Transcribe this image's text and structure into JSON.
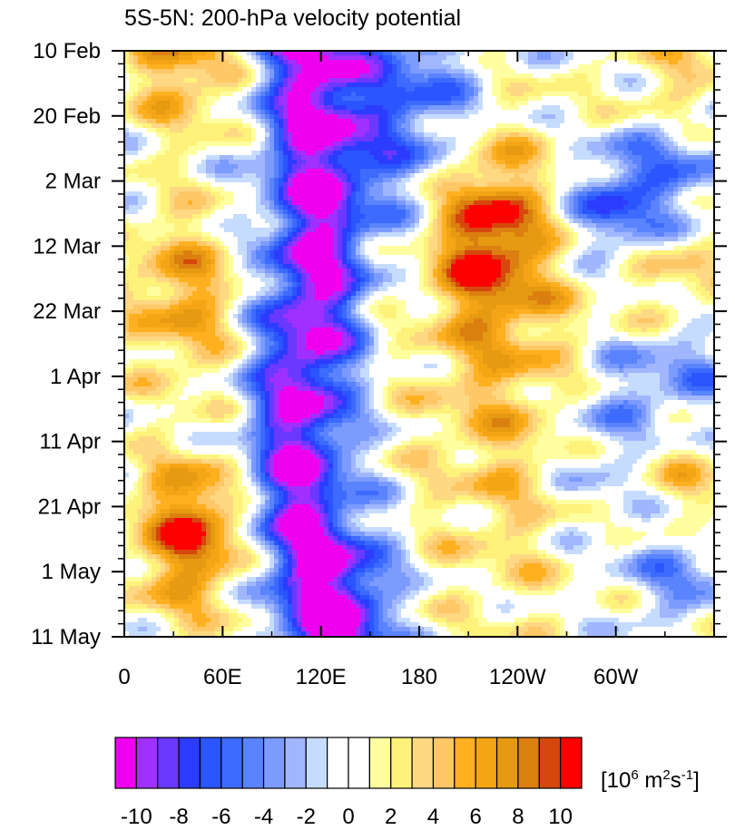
{
  "chart_data": {
    "type": "heatmap",
    "title": "5S-5N: 200-hPa velocity potential",
    "xlabel": "",
    "ylabel": "",
    "x_ticks": [
      "0",
      "60E",
      "120E",
      "180",
      "120W",
      "60W"
    ],
    "x_tick_values": [
      0,
      60,
      120,
      180,
      240,
      300
    ],
    "xlim": [
      0,
      360
    ],
    "y_ticks": [
      "10 Feb",
      "20 Feb",
      "2 Mar",
      "12 Mar",
      "22 Mar",
      "1 Apr",
      "11 Apr",
      "21 Apr",
      "1 May",
      "11 May"
    ],
    "y_tick_values": [
      0,
      10,
      20,
      30,
      40,
      50,
      60,
      70,
      80,
      90
    ],
    "ylim": [
      0,
      90
    ],
    "y_direction": "time increases downward",
    "colorbar": {
      "levels": [
        -11,
        -10,
        -9,
        -8,
        -7,
        -6,
        -5,
        -4,
        -3,
        -2,
        -1,
        0,
        1,
        2,
        3,
        4,
        5,
        6,
        7,
        8,
        9,
        10,
        11
      ],
      "colors": [
        "#ee00ee",
        "#a030ff",
        "#6a38ff",
        "#2c3cff",
        "#2a55ff",
        "#3d6bff",
        "#5a83ff",
        "#7c9bff",
        "#a0b6ff",
        "#c6dcff",
        "#ffffff",
        "#ffffff",
        "#ffffa0",
        "#fff27a",
        "#ffd884",
        "#ffc766",
        "#ffb020",
        "#f4a516",
        "#e59a12",
        "#db7f10",
        "#d5470c",
        "#ff0000"
      ],
      "tick_labels": [
        "-10",
        "-8",
        "-6",
        "-4",
        "-2",
        "0",
        "2",
        "4",
        "6",
        "8",
        "10"
      ],
      "tick_values": [
        -10,
        -8,
        -6,
        -4,
        -2,
        0,
        2,
        4,
        6,
        8,
        10
      ],
      "units": {
        "prefix": "[10",
        "sup1": "6",
        "mid": " m",
        "sup2": "2",
        "mid2": "s",
        "sup3": "-1",
        "suffix": "]"
      }
    },
    "features": [
      {
        "lon_start": 78,
        "lon_end": 150,
        "day_start": 0,
        "day_end": 90,
        "approx_min": -10
      },
      {
        "lon_start": 140,
        "lon_end": 200,
        "day_start": 0,
        "day_end": 20,
        "approx_min": -8
      },
      {
        "lon_start": 200,
        "lon_end": 230,
        "day_start": 25,
        "day_end": 35,
        "approx_max": 10
      },
      {
        "lon_start": 25,
        "lon_end": 70,
        "day_start": 65,
        "day_end": 78,
        "approx_max": 10
      },
      {
        "lon_start": 280,
        "lon_end": 320,
        "day_start": 20,
        "day_end": 30,
        "approx_min": -8
      }
    ]
  }
}
